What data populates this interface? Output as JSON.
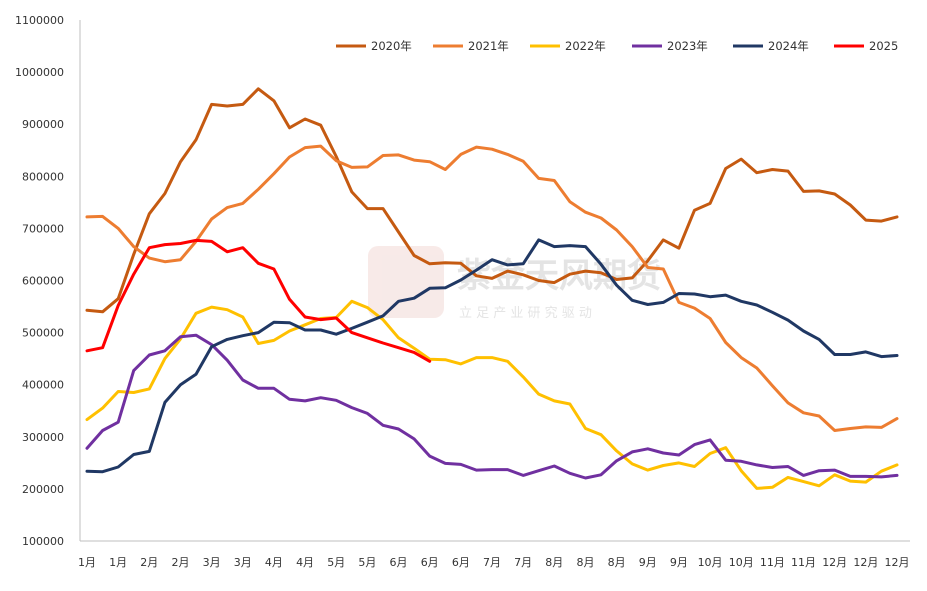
{
  "watermark": {
    "title": "紫金天风期货",
    "subtitle": "立 足 产 业   研 究 驱 动"
  },
  "chart_data": {
    "type": "line",
    "ylim": [
      100000,
      1100000
    ],
    "y_ticks": [
      "100000",
      "200000",
      "300000",
      "400000",
      "500000",
      "600000",
      "700000",
      "800000",
      "900000",
      "1000000",
      "1100000"
    ],
    "x_tick_labels": [
      "1月",
      "1月",
      "2月",
      "2月",
      "3月",
      "3月",
      "4月",
      "4月",
      "5月",
      "5月",
      "6月",
      "6月",
      "6月",
      "7月",
      "7月",
      "8月",
      "8月",
      "8月",
      "9月",
      "9月",
      "10月",
      "10月",
      "11月",
      "11月",
      "12月",
      "12月",
      "12月"
    ],
    "n_points": 53,
    "legend_position": "top",
    "grid": false,
    "series": [
      {
        "name": "2020年",
        "color": "#c55a11",
        "values": [
          543000,
          540000,
          565000,
          650000,
          728000,
          767000,
          828000,
          870000,
          938000,
          935000,
          938000,
          968000,
          945000,
          893000,
          910000,
          898000,
          838000,
          770000,
          738000,
          738000,
          693000,
          648000,
          632000,
          634000,
          633000,
          609000,
          604000,
          618000,
          611000,
          600000,
          596000,
          612000,
          618000,
          615000,
          602000,
          605000,
          638000,
          678000,
          662000,
          735000,
          748000,
          815000,
          833000,
          807000,
          813000,
          810000,
          771000,
          772000,
          766000,
          745000,
          716000,
          714000,
          722000
        ]
      },
      {
        "name": "2021年",
        "color": "#ed7d31",
        "values": [
          722000,
          723000,
          700000,
          665000,
          643000,
          636000,
          640000,
          675000,
          718000,
          740000,
          748000,
          775000,
          805000,
          837000,
          855000,
          858000,
          830000,
          817000,
          818000,
          840000,
          841000,
          831000,
          828000,
          813000,
          842000,
          856000,
          852000,
          842000,
          829000,
          796000,
          792000,
          751000,
          731000,
          720000,
          697000,
          665000,
          625000,
          622000,
          558000,
          547000,
          527000,
          481000,
          452000,
          432000,
          398000,
          365000,
          346000,
          340000,
          312000,
          316000,
          319000,
          318000,
          335000
        ]
      },
      {
        "name": "2022年",
        "color": "#ffc000",
        "values": [
          333000,
          355000,
          387000,
          385000,
          392000,
          450000,
          488000,
          537000,
          549000,
          544000,
          530000,
          479000,
          485000,
          503000,
          515000,
          527000,
          529000,
          560000,
          548000,
          525000,
          490000,
          470000,
          449000,
          448000,
          440000,
          452000,
          452000,
          445000,
          415000,
          382000,
          369000,
          363000,
          316000,
          304000,
          273000,
          248000,
          236000,
          245000,
          250000,
          243000,
          268000,
          279000,
          235000,
          201000,
          203000,
          222000,
          214000,
          206000,
          227000,
          215000,
          213000,
          234000,
          246000
        ]
      },
      {
        "name": "2023年",
        "color": "#7030a0",
        "values": [
          278000,
          312000,
          328000,
          427000,
          457000,
          465000,
          492000,
          495000,
          477000,
          447000,
          409000,
          393000,
          393000,
          372000,
          369000,
          375000,
          370000,
          356000,
          345000,
          322000,
          315000,
          296000,
          263000,
          249000,
          247000,
          236000,
          237000,
          237000,
          226000,
          235000,
          244000,
          230000,
          221000,
          227000,
          254000,
          271000,
          277000,
          269000,
          265000,
          285000,
          294000,
          255000,
          253000,
          246000,
          241000,
          243000,
          226000,
          235000,
          236000,
          224000,
          224000,
          223000,
          226000
        ]
      },
      {
        "name": "2024年",
        "color": "#203864",
        "values": [
          234000,
          233000,
          242000,
          266000,
          272000,
          366000,
          400000,
          420000,
          473000,
          487000,
          494000,
          500000,
          520000,
          519000,
          505000,
          505000,
          497000,
          508000,
          520000,
          532000,
          560000,
          566000,
          585000,
          586000,
          601000,
          620000,
          640000,
          630000,
          632000,
          678000,
          665000,
          667000,
          665000,
          631000,
          591000,
          562000,
          554000,
          558000,
          575000,
          574000,
          569000,
          572000,
          560000,
          553000,
          539000,
          524000,
          503000,
          487000,
          458000,
          458000,
          463000,
          454000,
          456000
        ]
      },
      {
        "name": "2025",
        "color": "#ff0000",
        "values": [
          465000,
          471000,
          552000,
          612000,
          663000,
          669000,
          671000,
          677000,
          675000,
          655000,
          663000,
          633000,
          622000,
          564000,
          530000,
          525000,
          528000,
          500000,
          490000,
          480000,
          471000,
          462000,
          445000
        ]
      }
    ]
  }
}
